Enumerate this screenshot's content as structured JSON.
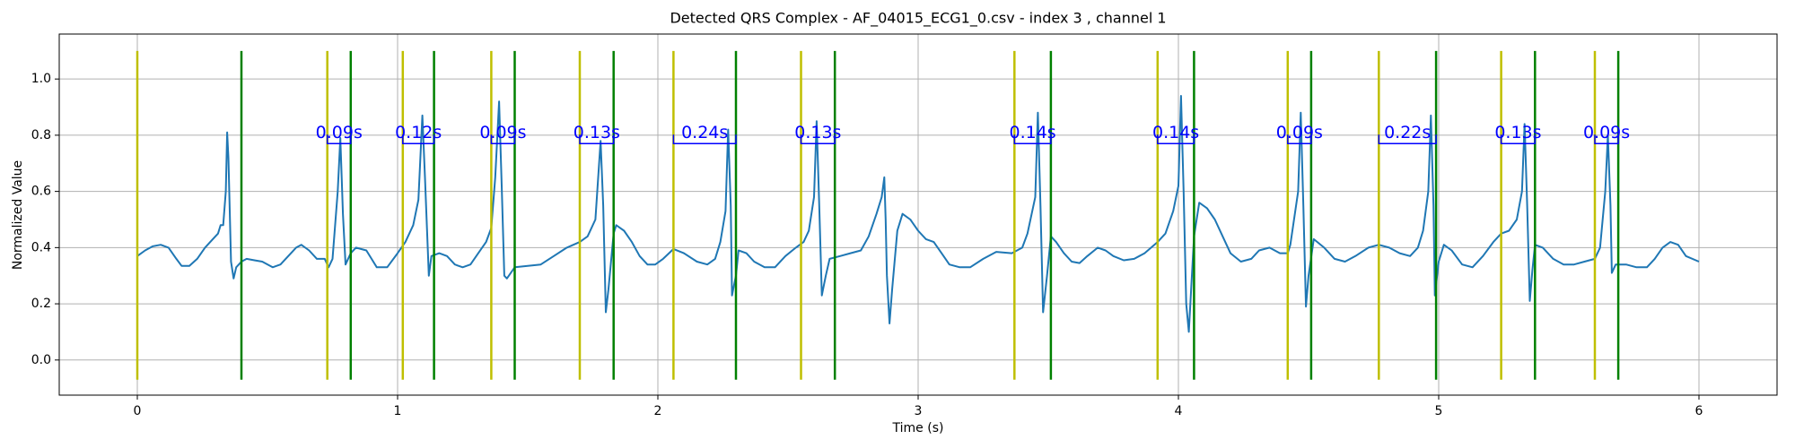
{
  "chart_data": {
    "type": "line",
    "title": "Detected QRS Complex - AF_04015_ECG1_0.csv - index 3 , channel 1",
    "x_label": "Time (s)",
    "y_label": "Normalized Value",
    "color": "#1f77b4",
    "onset_color": "#bfbf00",
    "offset_color": "#008000",
    "interval_color": "#0000ff",
    "xlim": [
      -0.3,
      6.3
    ],
    "ylim": [
      -0.125,
      1.16
    ],
    "xticks": [
      0,
      1,
      2,
      3,
      4,
      5,
      6
    ],
    "yticks": [
      {
        "value": 0,
        "label": "0.0"
      },
      0.2,
      0.4,
      0.6,
      0.8,
      {
        "value": 1,
        "label": "1.0"
      }
    ],
    "grid": true,
    "x": [
      0,
      0.03,
      0.06,
      0.09,
      0.12,
      0.15,
      0.17,
      0.2,
      0.23,
      0.26,
      0.29,
      0.31,
      0.32,
      0.33,
      0.34,
      0.345,
      0.35,
      0.36,
      0.37,
      0.38,
      0.4,
      0.42,
      0.45,
      0.48,
      0.52,
      0.55,
      0.58,
      0.61,
      0.63,
      0.66,
      0.69,
      0.72,
      0.735,
      0.75,
      0.77,
      0.78,
      0.79,
      0.8,
      0.82,
      0.84,
      0.88,
      0.9,
      0.92,
      0.96,
      1.0,
      1.03,
      1.06,
      1.08,
      1.095,
      1.105,
      1.12,
      1.13,
      1.16,
      1.19,
      1.22,
      1.25,
      1.28,
      1.31,
      1.34,
      1.36,
      1.375,
      1.39,
      1.4,
      1.41,
      1.42,
      1.45,
      1.5,
      1.55,
      1.6,
      1.65,
      1.7,
      1.73,
      1.76,
      1.78,
      1.79,
      1.8,
      1.81,
      1.83,
      1.84,
      1.87,
      1.9,
      1.93,
      1.96,
      1.99,
      2.02,
      2.06,
      2.1,
      2.15,
      2.19,
      2.22,
      2.24,
      2.26,
      2.27,
      2.28,
      2.285,
      2.3,
      2.31,
      2.34,
      2.37,
      2.41,
      2.45,
      2.49,
      2.53,
      2.56,
      2.58,
      2.6,
      2.61,
      2.62,
      2.63,
      2.645,
      2.66,
      2.7,
      2.74,
      2.78,
      2.81,
      2.84,
      2.86,
      2.87,
      2.875,
      2.88,
      2.89,
      2.9,
      2.92,
      2.94,
      2.97,
      3.0,
      3.03,
      3.06,
      3.09,
      3.12,
      3.16,
      3.2,
      3.25,
      3.3,
      3.36,
      3.4,
      3.42,
      3.45,
      3.46,
      3.47,
      3.48,
      3.495,
      3.51,
      3.53,
      3.56,
      3.59,
      3.62,
      3.65,
      3.69,
      3.72,
      3.75,
      3.79,
      3.83,
      3.87,
      3.92,
      3.95,
      3.98,
      4.0,
      4.01,
      4.02,
      4.03,
      4.04,
      4.06,
      4.08,
      4.11,
      4.14,
      4.17,
      4.2,
      4.24,
      4.28,
      4.31,
      4.35,
      4.39,
      4.42,
      4.43,
      4.46,
      4.47,
      4.48,
      4.49,
      4.5,
      4.52,
      4.56,
      4.6,
      4.64,
      4.68,
      4.73,
      4.77,
      4.81,
      4.85,
      4.89,
      4.92,
      4.94,
      4.96,
      4.97,
      4.98,
      4.985,
      5.0,
      5.02,
      5.05,
      5.09,
      5.13,
      5.17,
      5.21,
      5.24,
      5.27,
      5.3,
      5.32,
      5.33,
      5.34,
      5.35,
      5.36,
      5.37,
      5.4,
      5.44,
      5.48,
      5.52,
      5.56,
      5.6,
      5.62,
      5.64,
      5.65,
      5.66,
      5.665,
      5.68,
      5.72,
      5.76,
      5.8,
      5.83,
      5.86,
      5.89,
      5.92,
      5.95,
      6.0
    ],
    "values": [
      0.37,
      0.39,
      0.405,
      0.41,
      0.4,
      0.36,
      0.335,
      0.335,
      0.36,
      0.4,
      0.43,
      0.45,
      0.48,
      0.48,
      0.6,
      0.81,
      0.72,
      0.35,
      0.29,
      0.33,
      0.35,
      0.36,
      0.355,
      0.35,
      0.33,
      0.34,
      0.37,
      0.4,
      0.41,
      0.39,
      0.36,
      0.36,
      0.33,
      0.36,
      0.6,
      0.79,
      0.52,
      0.34,
      0.38,
      0.4,
      0.39,
      0.36,
      0.33,
      0.33,
      0.38,
      0.42,
      0.48,
      0.57,
      0.87,
      0.65,
      0.3,
      0.37,
      0.38,
      0.37,
      0.34,
      0.33,
      0.34,
      0.38,
      0.42,
      0.47,
      0.65,
      0.92,
      0.62,
      0.3,
      0.29,
      0.33,
      0.335,
      0.34,
      0.37,
      0.4,
      0.42,
      0.44,
      0.5,
      0.78,
      0.55,
      0.17,
      0.25,
      0.45,
      0.48,
      0.46,
      0.42,
      0.37,
      0.34,
      0.34,
      0.36,
      0.395,
      0.38,
      0.35,
      0.34,
      0.36,
      0.42,
      0.53,
      0.82,
      0.55,
      0.23,
      0.3,
      0.39,
      0.38,
      0.35,
      0.33,
      0.33,
      0.37,
      0.4,
      0.42,
      0.46,
      0.58,
      0.85,
      0.55,
      0.23,
      0.3,
      0.36,
      0.37,
      0.38,
      0.39,
      0.44,
      0.52,
      0.58,
      0.65,
      0.5,
      0.3,
      0.13,
      0.25,
      0.46,
      0.52,
      0.5,
      0.46,
      0.43,
      0.42,
      0.38,
      0.34,
      0.33,
      0.33,
      0.36,
      0.385,
      0.38,
      0.4,
      0.45,
      0.58,
      0.88,
      0.55,
      0.17,
      0.3,
      0.44,
      0.42,
      0.38,
      0.35,
      0.345,
      0.37,
      0.4,
      0.39,
      0.37,
      0.355,
      0.36,
      0.38,
      0.42,
      0.45,
      0.53,
      0.62,
      0.94,
      0.6,
      0.2,
      0.1,
      0.44,
      0.56,
      0.54,
      0.5,
      0.44,
      0.38,
      0.35,
      0.36,
      0.39,
      0.4,
      0.38,
      0.38,
      0.41,
      0.6,
      0.88,
      0.55,
      0.19,
      0.3,
      0.43,
      0.4,
      0.36,
      0.35,
      0.37,
      0.4,
      0.41,
      0.4,
      0.38,
      0.37,
      0.4,
      0.46,
      0.6,
      0.87,
      0.55,
      0.23,
      0.35,
      0.41,
      0.39,
      0.34,
      0.33,
      0.37,
      0.42,
      0.45,
      0.46,
      0.5,
      0.6,
      0.84,
      0.55,
      0.21,
      0.32,
      0.41,
      0.4,
      0.36,
      0.34,
      0.34,
      0.35,
      0.36,
      0.4,
      0.6,
      0.8,
      0.55,
      0.31,
      0.34,
      0.34,
      0.33,
      0.33,
      0.36,
      0.4,
      0.42,
      0.41,
      0.37,
      0.35
    ],
    "onsets": [
      0,
      0.73,
      1.02,
      1.36,
      1.7,
      2.06,
      2.55,
      3.37,
      3.92,
      4.42,
      4.77,
      5.24,
      5.6
    ],
    "offsets": [
      0.4,
      0.82,
      1.14,
      1.45,
      1.83,
      2.3,
      2.68,
      3.51,
      4.06,
      4.51,
      4.99,
      5.37,
      5.69
    ],
    "durations": [
      null,
      0.09,
      0.12,
      0.09,
      0.13,
      0.24,
      0.13,
      0.14,
      0.14,
      0.09,
      0.22,
      0.13,
      0.09
    ],
    "duration_labels": [
      null,
      "0.09s",
      "0.12s",
      "0.09s",
      "0.13s",
      "0.24s",
      "0.13s",
      "0.14s",
      "0.14s",
      "0.09s",
      "0.22s",
      "0.13s",
      "0.09s"
    ]
  }
}
